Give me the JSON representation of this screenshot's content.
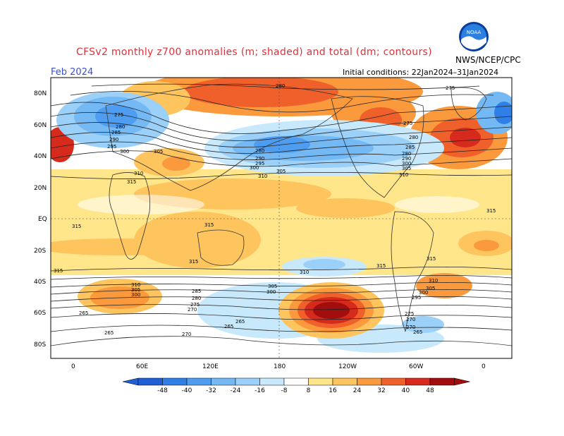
{
  "header": {
    "title": "CFSv2 monthly z700 anomalies (m; shaded) and total (dm; contours)",
    "org": "NWS/NCEP/CPC",
    "month": "Feb 2024",
    "initial_conditions": "Initial conditions: 22Jan2024–31Jan2024"
  },
  "map": {
    "lat_labels": [
      "80N",
      "60N",
      "40N",
      "20N",
      "EQ",
      "20S",
      "40S",
      "60S",
      "80S"
    ],
    "lon_labels": [
      "0",
      "60E",
      "120E",
      "180",
      "120W",
      "60W",
      "0"
    ],
    "contour_labels": {
      "c280": "280",
      "c275": "275",
      "c285": "285",
      "c290": "290",
      "c295": "295",
      "c300": "300",
      "c305": "305",
      "c310": "310",
      "c315": "315",
      "c270": "270",
      "c265": "265"
    }
  },
  "colorbar": {
    "ticks": [
      "-48",
      "-40",
      "-32",
      "-24",
      "-16",
      "-8",
      "8",
      "16",
      "24",
      "32",
      "40",
      "48"
    ],
    "colors": [
      "#1f5fd6",
      "#2f7fe6",
      "#4f9df0",
      "#74b8f4",
      "#9bd0f8",
      "#c7e9fb",
      "#ffffff",
      "#ffe68a",
      "#fec45e",
      "#fb9a3c",
      "#f0602a",
      "#d52a1c",
      "#a30d0d"
    ]
  }
}
